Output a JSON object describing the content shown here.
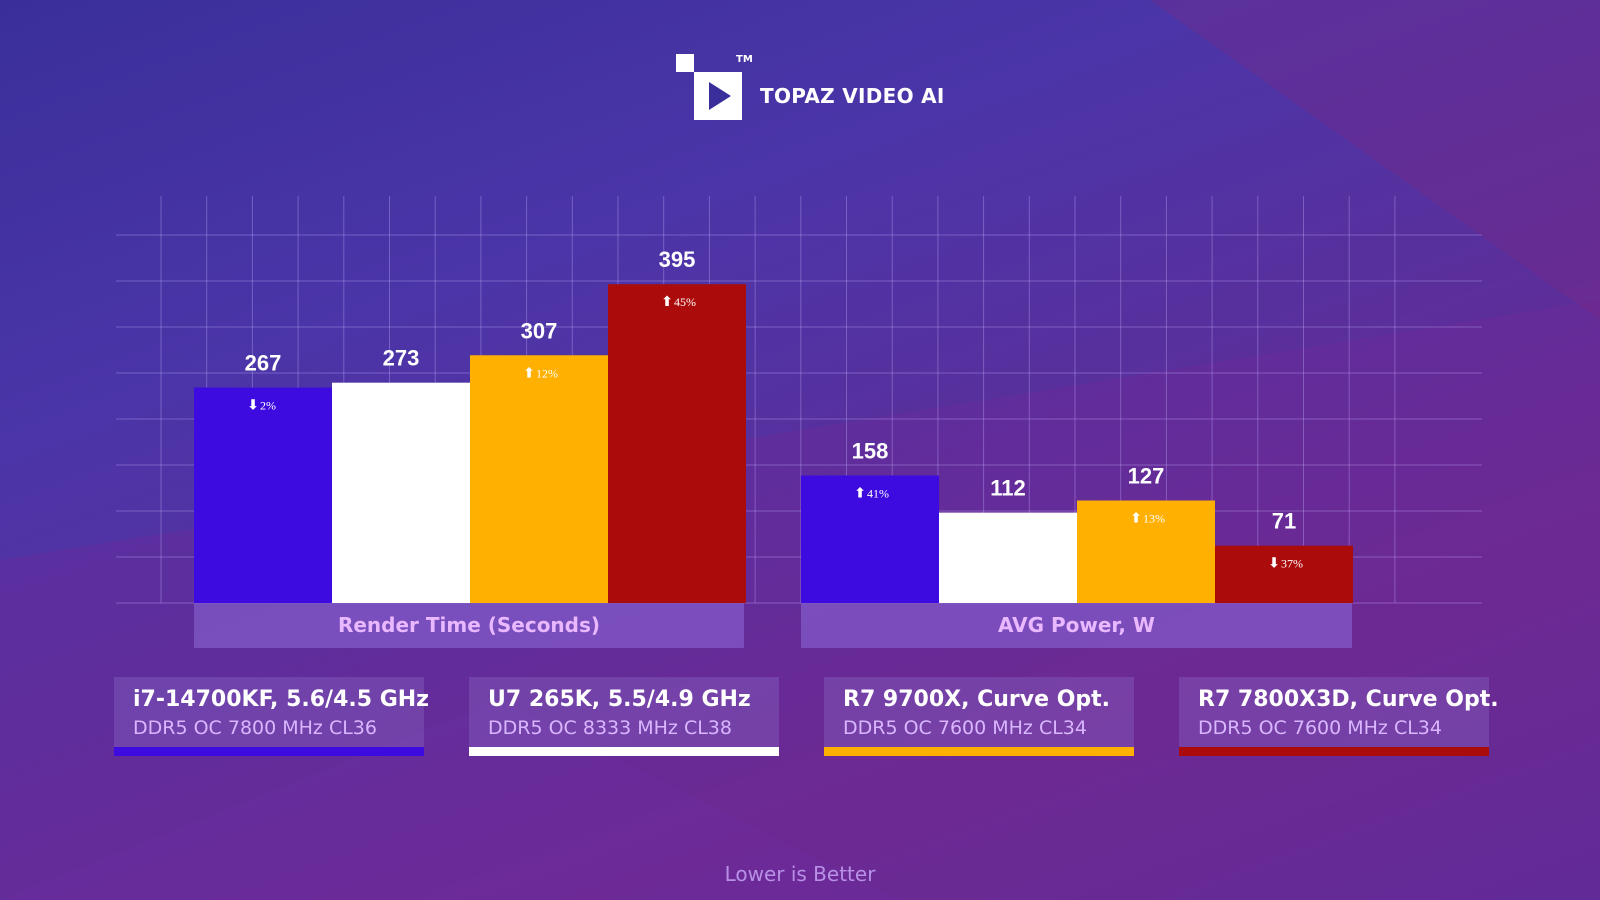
{
  "brand": {
    "name": "TOPAZ VIDEO AI",
    "tm": "TM"
  },
  "chart_data": {
    "type": "bar",
    "ylim": [
      0,
      450
    ],
    "grid": true,
    "groups": [
      {
        "label": "Render Time (Seconds)",
        "values": [
          267,
          273,
          307,
          395
        ],
        "value_labels": [
          "267",
          "273",
          "307",
          "395"
        ],
        "deltas": [
          {
            "dir": "down",
            "text": "2%"
          },
          null,
          {
            "dir": "up",
            "text": "12%"
          },
          {
            "dir": "up",
            "text": "45%"
          }
        ]
      },
      {
        "label": "AVG Power, W",
        "values": [
          158,
          112,
          127,
          71
        ],
        "value_labels": [
          "158",
          "112",
          "127",
          "71"
        ],
        "deltas": [
          {
            "dir": "up",
            "text": "41%"
          },
          null,
          {
            "dir": "up",
            "text": "13%"
          },
          {
            "dir": "down",
            "text": "37%"
          }
        ]
      }
    ],
    "series": [
      {
        "name": "i7-14700KF, 5.6/4.5 GHz",
        "subtitle": "DDR5 OC 7800 MHz CL36",
        "color": "#3d0be0"
      },
      {
        "name": "U7 265K, 5.5/4.9 GHz",
        "subtitle": "DDR5 OC 8333 MHz CL38",
        "color": "#ffffff"
      },
      {
        "name": "R7 9700X, Curve Opt.",
        "subtitle": "DDR5 OC 7600 MHz CL34",
        "color": "#ffb000"
      },
      {
        "name": "R7 7800X3D, Curve Opt.",
        "subtitle": "DDR5 OC 7600 MHz CL34",
        "color": "#ac0b0b"
      }
    ]
  },
  "footer": {
    "note": "Lower is Better"
  }
}
